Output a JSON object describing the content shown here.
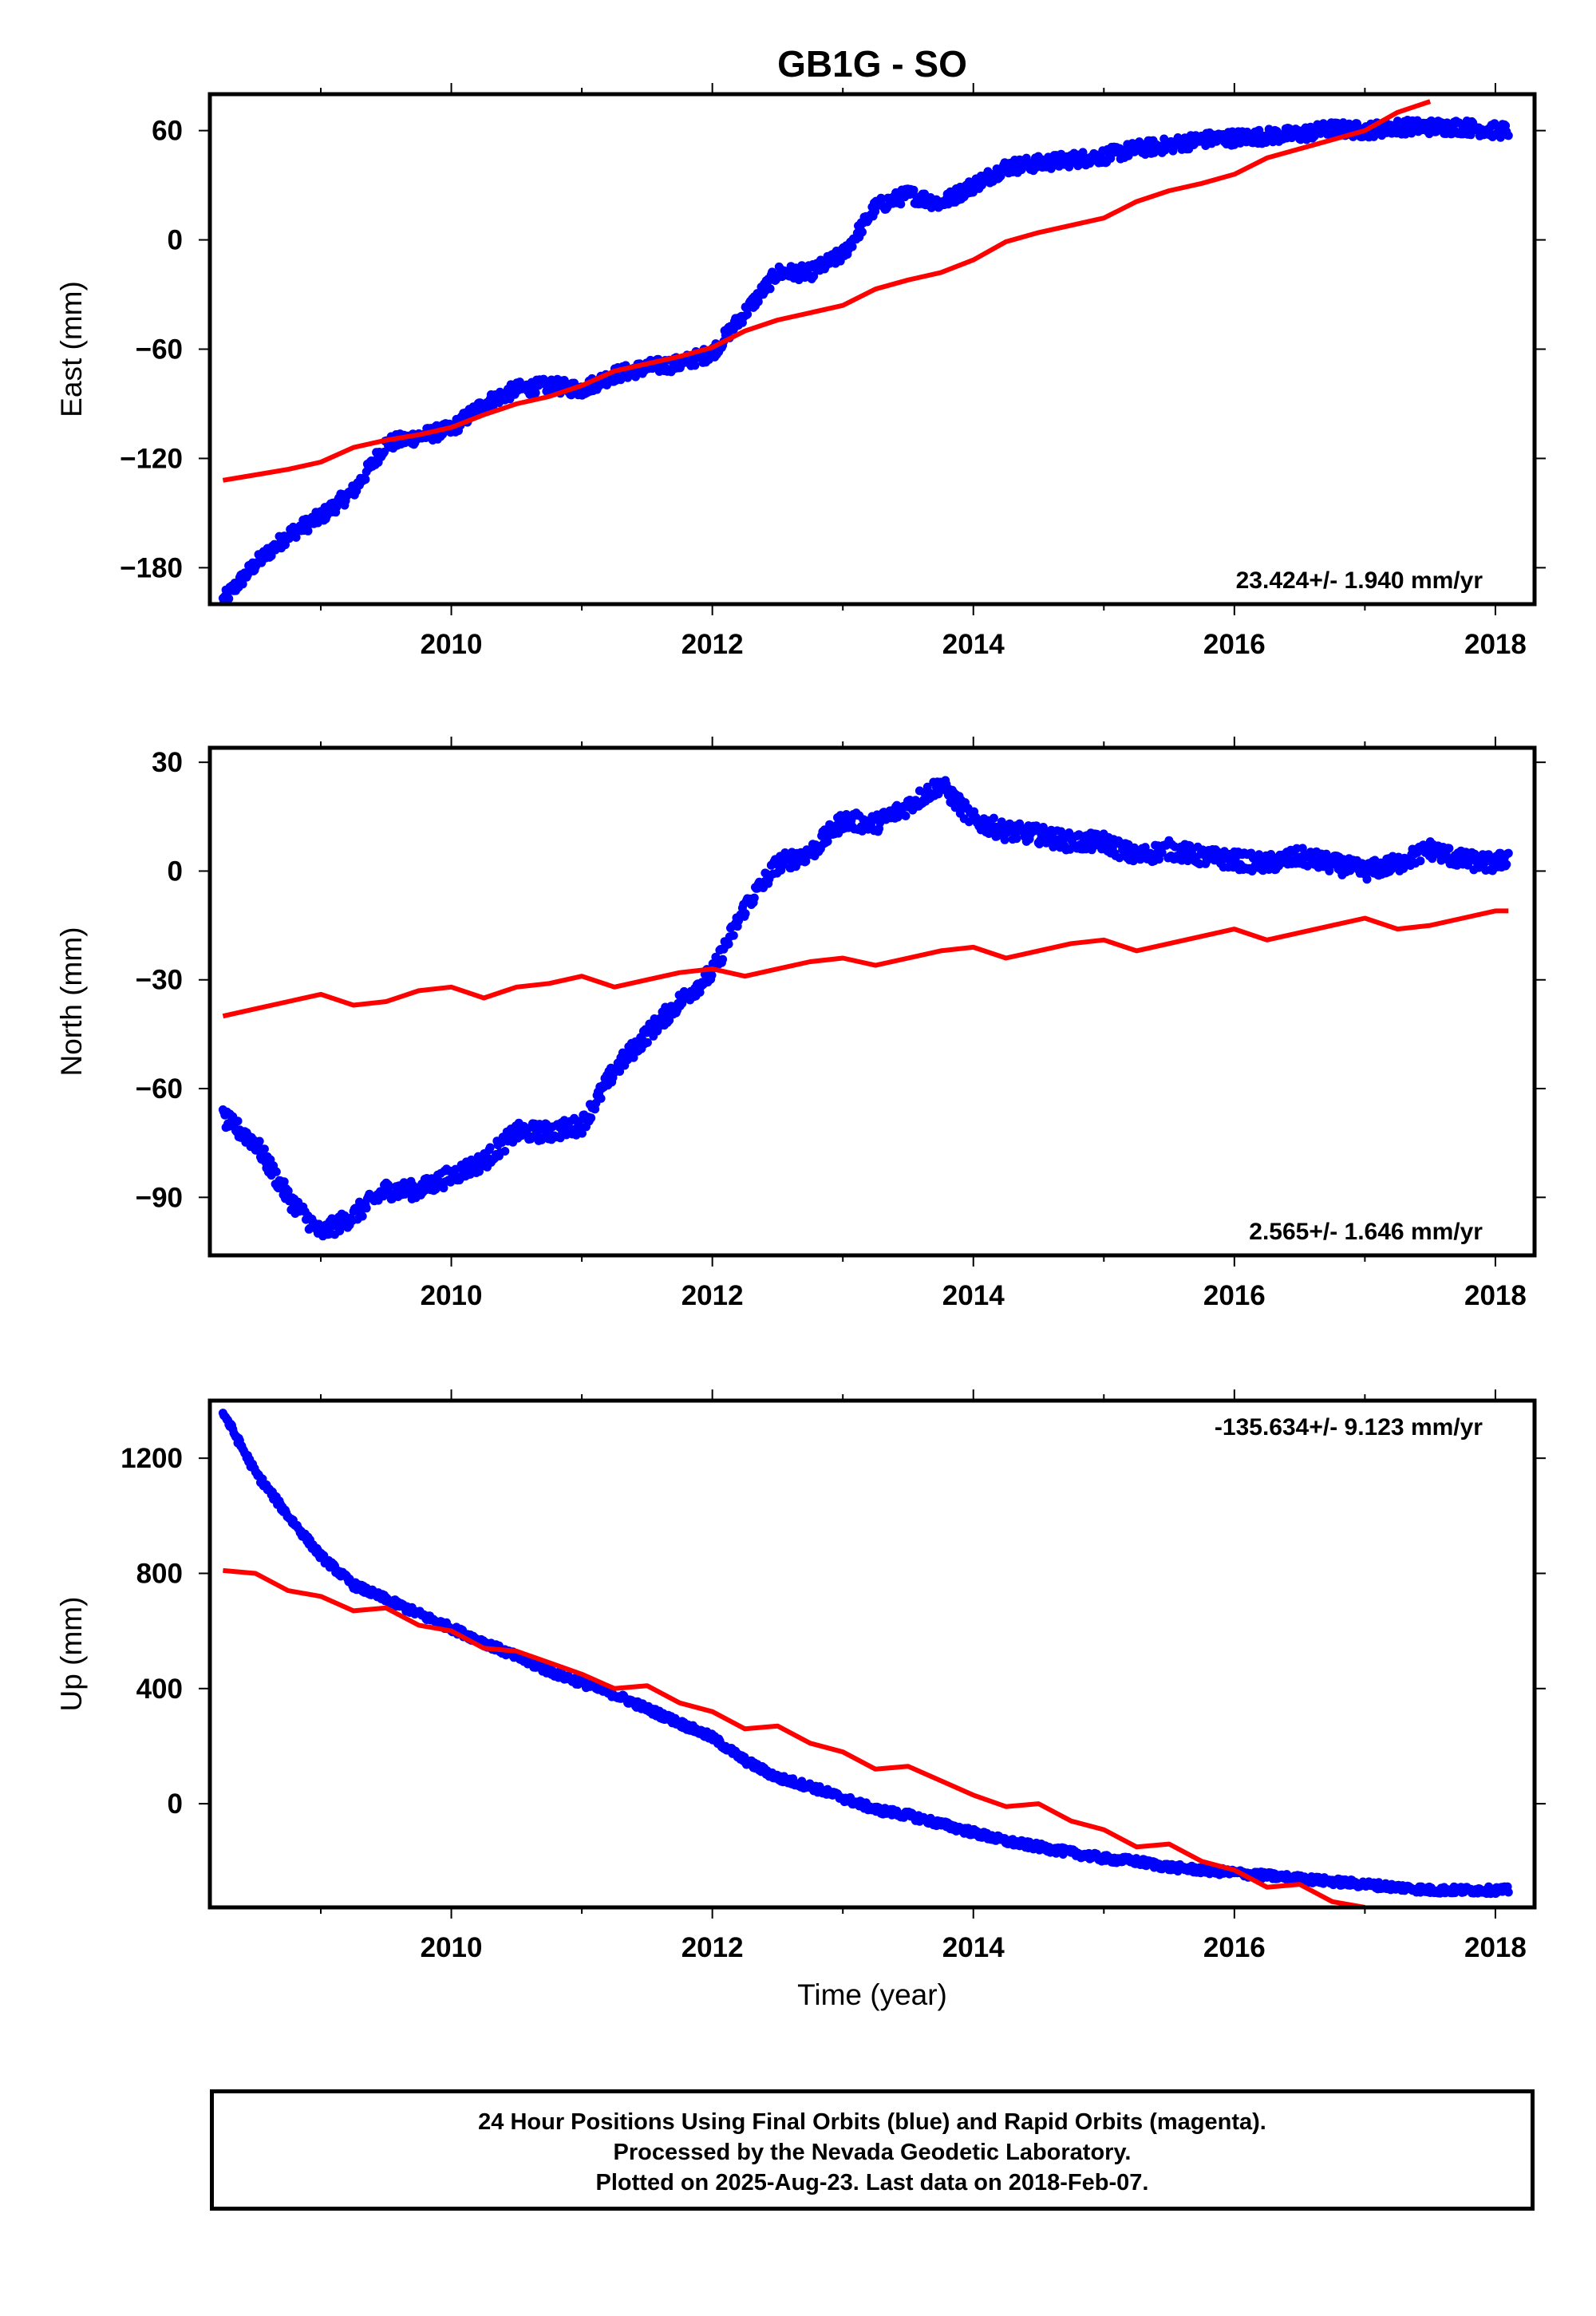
{
  "title": "GB1G - SO",
  "colors": {
    "final_orbits": "#0000ff",
    "model_curve": "#ff0000",
    "frame": "#000000"
  },
  "chart_data": [
    {
      "type": "scatter",
      "panel": "east",
      "ylabel": "East (mm)",
      "xlim": [
        2008.15,
        2018.3
      ],
      "ylim": [
        -200,
        80
      ],
      "yticks": [
        -180,
        -120,
        -60,
        0,
        60
      ],
      "xticks": [
        2010,
        2012,
        2014,
        2016,
        2018
      ],
      "rate_label": "23.424+/- 1.940 mm/yr",
      "rate_position": "bottom-right",
      "series": [
        {
          "color": "#0000ff",
          "marker": "point",
          "x": [
            2008.25,
            2008.5,
            2008.75,
            2009.0,
            2009.25,
            2009.5,
            2009.75,
            2010.0,
            2010.25,
            2010.5,
            2010.75,
            2011.0,
            2011.25,
            2011.5,
            2011.75,
            2012.0,
            2012.25,
            2012.5,
            2012.75,
            2013.0,
            2013.25,
            2013.5,
            2013.75,
            2014.0,
            2014.25,
            2014.5,
            2014.75,
            2015.0,
            2015.25,
            2015.5,
            2015.75,
            2016.0,
            2016.25,
            2016.5,
            2016.75,
            2017.0,
            2017.25,
            2017.5,
            2017.75,
            2018.0,
            2018.1
          ],
          "y": [
            -198,
            -178,
            -162,
            -152,
            -138,
            -112,
            -108,
            -104,
            -90,
            -82,
            -80,
            -82,
            -74,
            -70,
            -68,
            -62,
            -40,
            -18,
            -18,
            -8,
            18,
            25,
            20,
            30,
            40,
            42,
            44,
            46,
            50,
            52,
            55,
            56,
            57,
            58,
            61,
            60,
            62,
            62,
            62,
            60,
            60
          ],
          "spread": 4
        },
        {
          "color": "#ff0000",
          "marker": "line",
          "x": [
            2008.25,
            2008.5,
            2008.75,
            2009.0,
            2009.25,
            2009.5,
            2009.75,
            2010.0,
            2010.25,
            2010.5,
            2010.75,
            2011.0,
            2011.25,
            2011.5,
            2011.75,
            2012.0,
            2012.25,
            2012.5,
            2012.75,
            2013.0,
            2013.25,
            2013.5,
            2013.75,
            2014.0,
            2014.25,
            2014.5,
            2014.75,
            2015.0,
            2015.25,
            2015.5,
            2015.75,
            2016.0,
            2016.25,
            2016.5,
            2016.75,
            2017.0,
            2017.25,
            2017.5
          ],
          "y": [
            -132,
            -129,
            -126,
            -122,
            -114,
            -110,
            -107,
            -103,
            -96,
            -90,
            -86,
            -80,
            -72,
            -68,
            -64,
            -59,
            -50,
            -44,
            -40,
            -36,
            -27,
            -22,
            -18,
            -11,
            -1,
            4,
            8,
            12,
            21,
            27,
            31,
            36,
            45,
            50,
            55,
            60,
            70,
            76
          ]
        }
      ]
    },
    {
      "type": "scatter",
      "panel": "north",
      "ylabel": "North (mm)",
      "xlim": [
        2008.15,
        2018.3
      ],
      "ylim": [
        -106,
        34
      ],
      "yticks": [
        -90,
        -60,
        -30,
        0,
        30
      ],
      "xticks": [
        2010,
        2012,
        2014,
        2016,
        2018
      ],
      "rate_label": "2.565+/- 1.646 mm/yr",
      "rate_position": "bottom-right",
      "series": [
        {
          "color": "#0000ff",
          "marker": "point",
          "x": [
            2008.25,
            2008.5,
            2008.75,
            2009.0,
            2009.25,
            2009.5,
            2009.75,
            2010.0,
            2010.25,
            2010.5,
            2010.75,
            2011.0,
            2011.25,
            2011.5,
            2011.75,
            2012.0,
            2012.25,
            2012.5,
            2012.75,
            2013.0,
            2013.25,
            2013.5,
            2013.75,
            2014.0,
            2014.25,
            2014.5,
            2014.75,
            2015.0,
            2015.25,
            2015.5,
            2015.75,
            2016.0,
            2016.25,
            2016.5,
            2016.75,
            2017.0,
            2017.25,
            2017.5,
            2017.75,
            2018.0,
            2018.1
          ],
          "y": [
            -68,
            -75,
            -90,
            -100,
            -95,
            -88,
            -88,
            -84,
            -80,
            -72,
            -72,
            -70,
            -55,
            -45,
            -36,
            -28,
            -10,
            2,
            5,
            14,
            13,
            18,
            24,
            14,
            11,
            10,
            8,
            8,
            4,
            6,
            4,
            3,
            2,
            4,
            2,
            0,
            2,
            6,
            3,
            2,
            4
          ],
          "spread": 2.5
        },
        {
          "color": "#ff0000",
          "marker": "line",
          "x": [
            2008.25,
            2008.5,
            2008.75,
            2009.0,
            2009.25,
            2009.5,
            2009.75,
            2010.0,
            2010.25,
            2010.5,
            2010.75,
            2011.0,
            2011.25,
            2011.5,
            2011.75,
            2012.0,
            2012.25,
            2012.5,
            2012.75,
            2013.0,
            2013.25,
            2013.5,
            2013.75,
            2014.0,
            2014.25,
            2014.5,
            2014.75,
            2015.0,
            2015.25,
            2015.5,
            2015.75,
            2016.0,
            2016.25,
            2016.5,
            2016.75,
            2017.0,
            2017.25,
            2017.5,
            2017.75,
            2018.0,
            2018.1
          ],
          "y": [
            -40,
            -38,
            -36,
            -34,
            -37,
            -36,
            -33,
            -32,
            -35,
            -32,
            -31,
            -29,
            -32,
            -30,
            -28,
            -27,
            -29,
            -27,
            -25,
            -24,
            -26,
            -24,
            -22,
            -21,
            -24,
            -22,
            -20,
            -19,
            -22,
            -20,
            -18,
            -16,
            -19,
            -17,
            -15,
            -13,
            -16,
            -15,
            -13,
            -11,
            -11
          ]
        }
      ]
    },
    {
      "type": "scatter",
      "panel": "up",
      "ylabel": "Up (mm)",
      "xlabel": "Time (year)",
      "xlim": [
        2008.15,
        2018.3
      ],
      "ylim": [
        -360,
        1400
      ],
      "yticks": [
        0,
        400,
        800,
        1200
      ],
      "xticks": [
        2010,
        2012,
        2014,
        2016,
        2018
      ],
      "rate_label": "-135.634+/- 9.123 mm/yr",
      "rate_position": "top-right",
      "series": [
        {
          "color": "#0000ff",
          "marker": "point",
          "x": [
            2008.25,
            2008.5,
            2008.75,
            2009.0,
            2009.25,
            2009.5,
            2009.75,
            2010.0,
            2010.25,
            2010.5,
            2010.75,
            2011.0,
            2011.25,
            2011.5,
            2011.75,
            2012.0,
            2012.25,
            2012.5,
            2012.75,
            2013.0,
            2013.25,
            2013.5,
            2013.75,
            2014.0,
            2014.25,
            2014.5,
            2014.75,
            2015.0,
            2015.25,
            2015.5,
            2015.75,
            2016.0,
            2016.25,
            2016.5,
            2016.75,
            2017.0,
            2017.25,
            2017.5,
            2017.75,
            2018.0,
            2018.1
          ],
          "y": [
            1360,
            1150,
            1000,
            860,
            760,
            710,
            660,
            610,
            560,
            510,
            460,
            420,
            380,
            330,
            280,
            230,
            150,
            90,
            60,
            20,
            -20,
            -40,
            -70,
            -100,
            -130,
            -150,
            -170,
            -190,
            -200,
            -220,
            -230,
            -240,
            -250,
            -260,
            -270,
            -280,
            -290,
            -300,
            -300,
            -300,
            -300
          ],
          "spread": 12
        },
        {
          "color": "#ff0000",
          "marker": "line",
          "x": [
            2008.25,
            2008.5,
            2008.75,
            2009.0,
            2009.25,
            2009.5,
            2009.75,
            2010.0,
            2010.25,
            2010.5,
            2010.75,
            2011.0,
            2011.25,
            2011.5,
            2011.75,
            2012.0,
            2012.25,
            2012.5,
            2012.75,
            2013.0,
            2013.25,
            2013.5,
            2013.75,
            2014.0,
            2014.25,
            2014.5,
            2014.75,
            2015.0,
            2015.25,
            2015.5,
            2015.75,
            2016.0,
            2016.25,
            2016.5,
            2016.75,
            2017.0
          ],
          "y": [
            810,
            800,
            740,
            720,
            670,
            680,
            620,
            600,
            540,
            530,
            490,
            450,
            400,
            410,
            350,
            320,
            260,
            270,
            210,
            180,
            120,
            130,
            80,
            30,
            -10,
            0,
            -60,
            -90,
            -150,
            -140,
            -200,
            -230,
            -290,
            -280,
            -340,
            -360
          ]
        }
      ]
    }
  ],
  "footer": {
    "line1": "24 Hour Positions Using Final Orbits (blue) and Rapid Orbits (magenta).",
    "line2": "Processed by the Nevada Geodetic Laboratory.",
    "line3": "Plotted on 2025-Aug-23. Last data on 2018-Feb-07."
  }
}
